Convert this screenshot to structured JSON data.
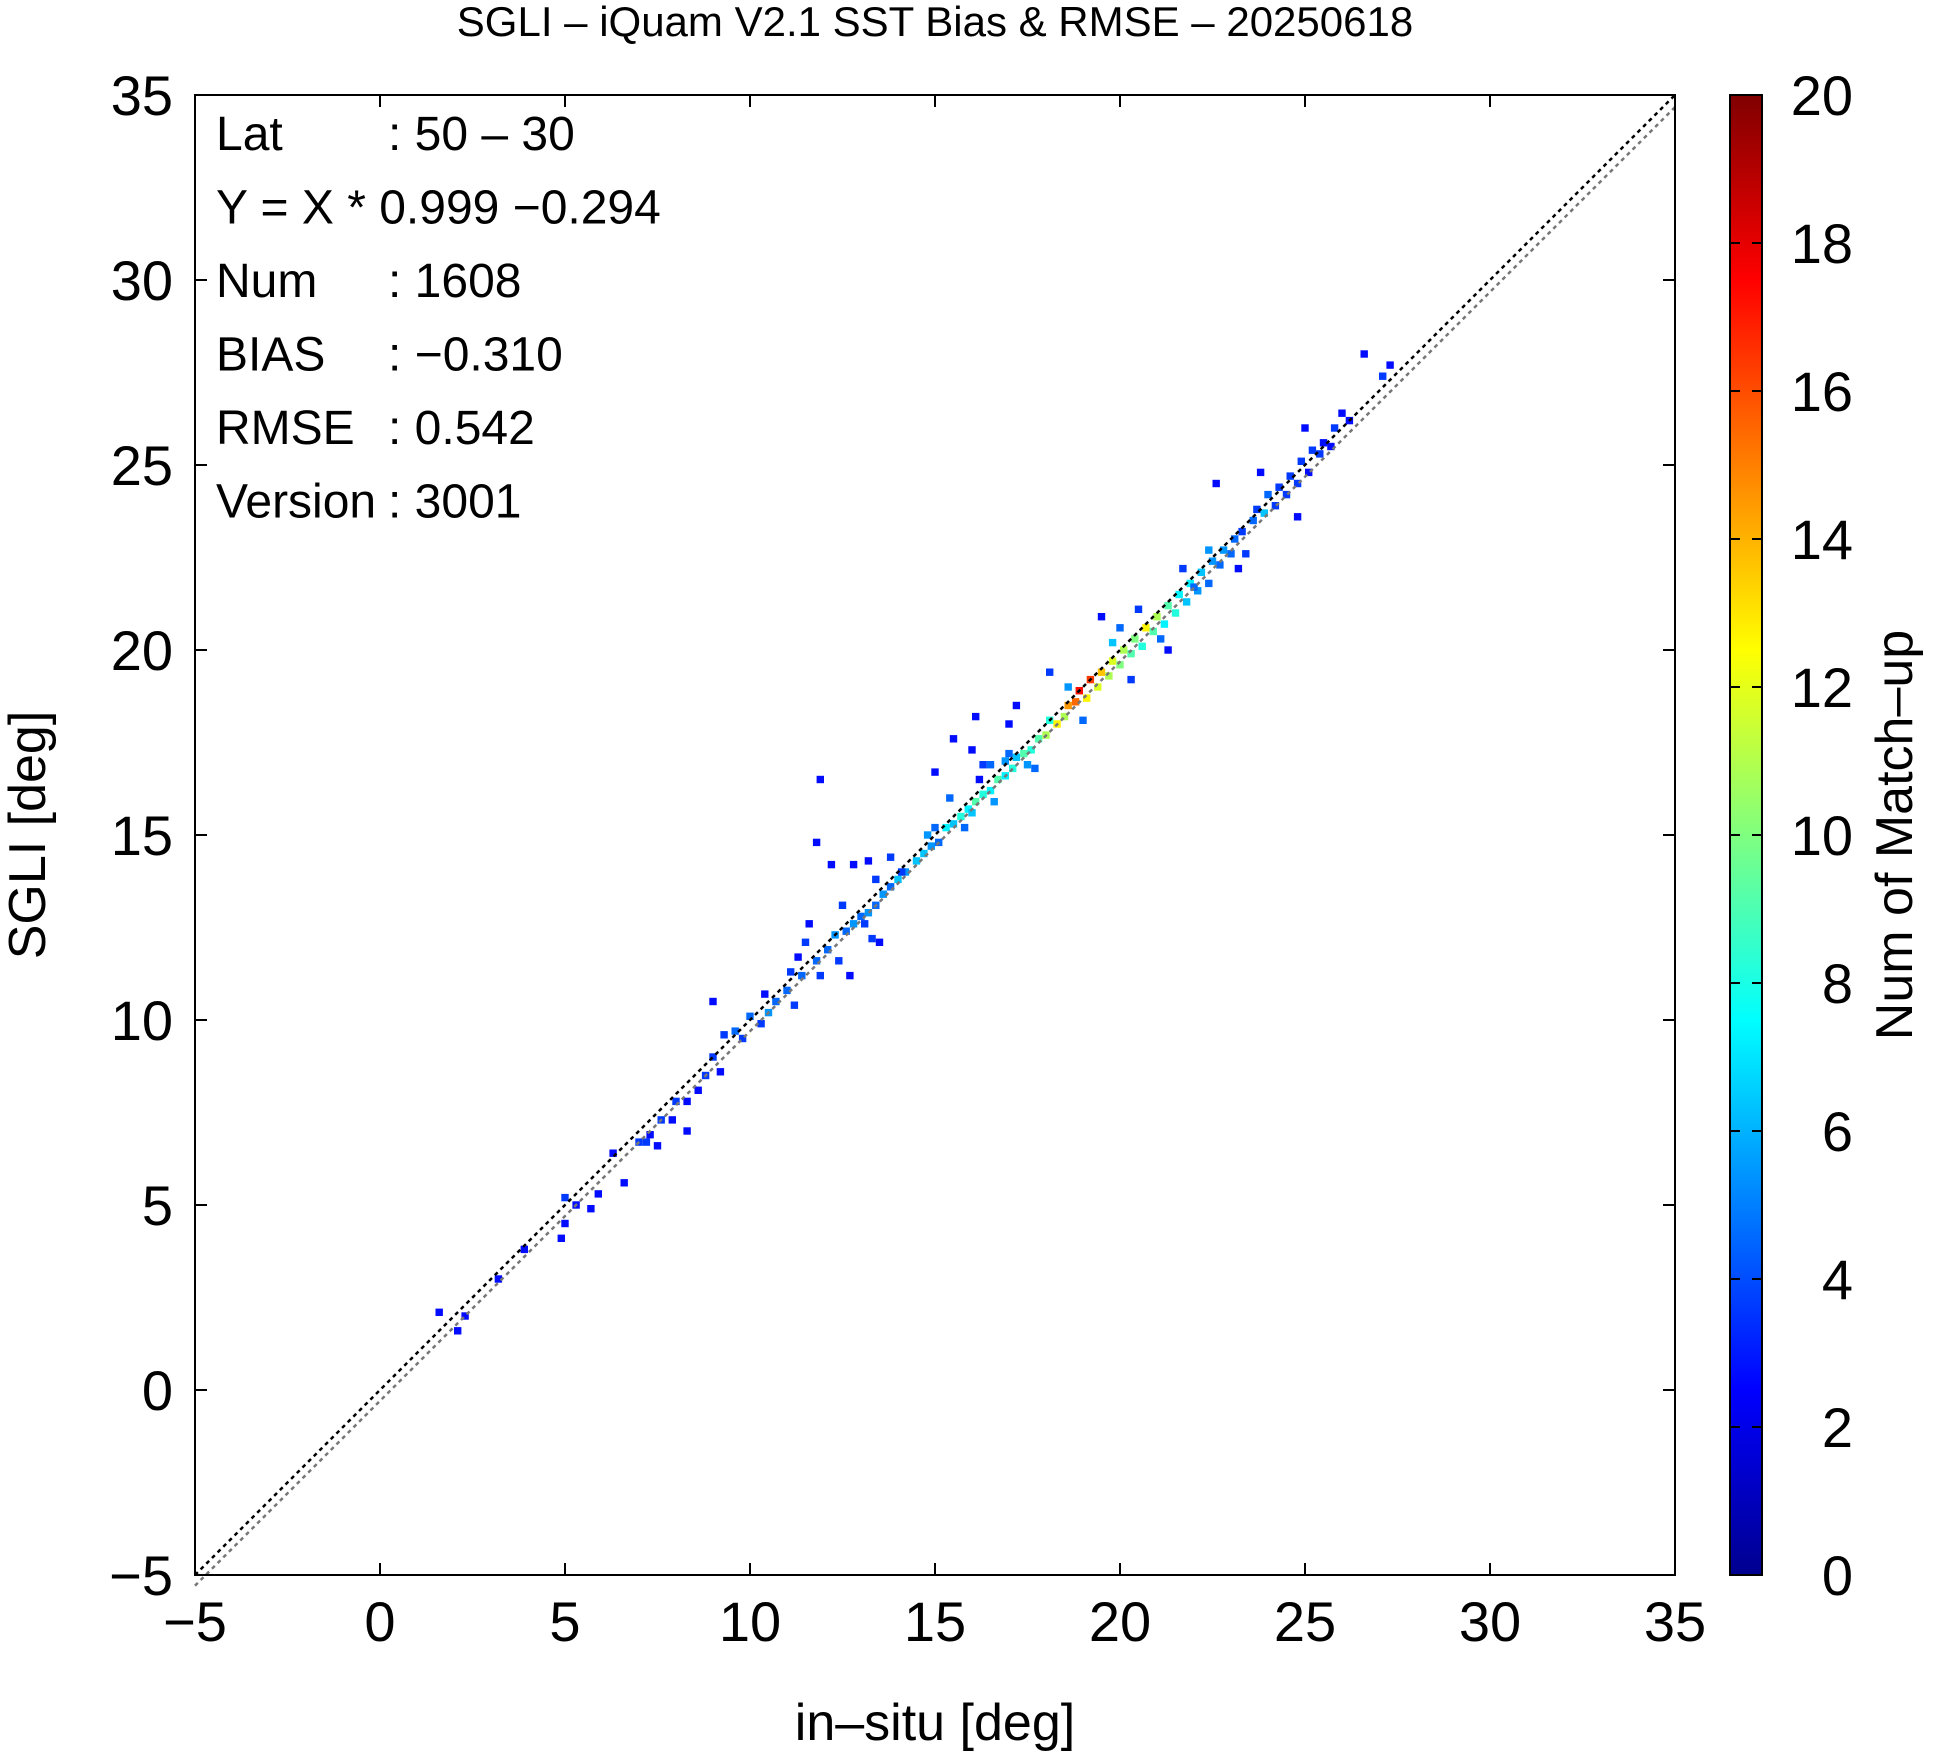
{
  "chart_data": {
    "type": "heatmap",
    "title": "SGLI – iQuam V2.1 SST Bias & RMSE  – 20250618",
    "xlabel": "in–situ [deg]",
    "ylabel": "SGLI [deg]",
    "xlim": [
      -5,
      35
    ],
    "ylim": [
      -5,
      35
    ],
    "xticks": [
      "−5",
      "0",
      "5",
      "10",
      "15",
      "20",
      "25",
      "30",
      "35"
    ],
    "yticks": [
      "−5",
      "0",
      "5",
      "10",
      "15",
      "20",
      "25",
      "30",
      "35"
    ],
    "grid": false,
    "colorbar": {
      "label": "Num of Match–up",
      "range": [
        0,
        20
      ],
      "ticks": [
        "0",
        "2",
        "4",
        "6",
        "8",
        "10",
        "12",
        "14",
        "16",
        "18",
        "20"
      ],
      "colormap": "jet"
    },
    "lines": [
      {
        "name": "1:1",
        "slope": 1,
        "intercept": 0,
        "style": "dotted",
        "color": "#000000"
      },
      {
        "name": "regression",
        "slope": 0.999,
        "intercept": -0.294,
        "style": "dotted",
        "color": "#777777"
      }
    ],
    "stats": [
      {
        "label": "Lat",
        "value": ": 50 – 30"
      },
      {
        "label": "Y = X * 0.999 −0.294",
        "value": ""
      },
      {
        "label": "Num",
        "value": ": 1608"
      },
      {
        "label": "BIAS",
        "value": ": −0.310"
      },
      {
        "label": "RMSE",
        "value": ": 0.542"
      },
      {
        "label": "Version",
        "value": ": 3001"
      }
    ],
    "scatter_cells": [
      [
        1.6,
        2.1,
        1
      ],
      [
        2.1,
        1.6,
        1
      ],
      [
        2.3,
        2.0,
        1
      ],
      [
        3.2,
        3.0,
        1
      ],
      [
        3.9,
        3.8,
        1
      ],
      [
        4.9,
        4.1,
        1
      ],
      [
        5.0,
        4.5,
        1
      ],
      [
        5.0,
        5.2,
        2
      ],
      [
        5.3,
        5.0,
        1
      ],
      [
        5.7,
        4.9,
        1
      ],
      [
        5.9,
        5.3,
        1
      ],
      [
        6.3,
        6.4,
        1
      ],
      [
        6.6,
        5.6,
        1
      ],
      [
        7.0,
        6.7,
        2
      ],
      [
        7.2,
        6.7,
        2
      ],
      [
        7.3,
        6.9,
        1
      ],
      [
        7.5,
        6.6,
        1
      ],
      [
        7.6,
        7.3,
        2
      ],
      [
        7.9,
        7.3,
        1
      ],
      [
        8.0,
        7.8,
        2
      ],
      [
        8.3,
        7.8,
        1
      ],
      [
        8.3,
        7.0,
        1
      ],
      [
        8.6,
        8.1,
        1
      ],
      [
        8.8,
        8.5,
        2
      ],
      [
        9.0,
        9.0,
        2
      ],
      [
        9.2,
        8.6,
        1
      ],
      [
        9.3,
        9.6,
        2
      ],
      [
        9.0,
        10.5,
        1
      ],
      [
        9.6,
        9.7,
        3
      ],
      [
        9.8,
        9.5,
        2
      ],
      [
        10.0,
        10.1,
        3
      ],
      [
        10.3,
        9.9,
        2
      ],
      [
        10.5,
        10.2,
        4
      ],
      [
        10.7,
        10.5,
        3
      ],
      [
        11.0,
        10.8,
        3
      ],
      [
        11.2,
        10.4,
        2
      ],
      [
        10.4,
        10.7,
        1
      ],
      [
        11.1,
        11.3,
        2
      ],
      [
        11.4,
        11.2,
        3
      ],
      [
        11.5,
        12.1,
        2
      ],
      [
        11.8,
        11.6,
        3
      ],
      [
        11.3,
        11.7,
        1
      ],
      [
        11.6,
        12.6,
        1
      ],
      [
        11.9,
        11.2,
        2
      ],
      [
        12.1,
        11.9,
        3
      ],
      [
        12.3,
        12.3,
        4
      ],
      [
        12.4,
        11.6,
        2
      ],
      [
        12.6,
        12.4,
        3
      ],
      [
        12.8,
        12.6,
        4
      ],
      [
        12.5,
        13.1,
        2
      ],
      [
        13.0,
        12.8,
        3
      ],
      [
        13.2,
        12.9,
        4
      ],
      [
        13.4,
        13.1,
        3
      ],
      [
        13.3,
        12.2,
        2
      ],
      [
        13.6,
        13.4,
        4
      ],
      [
        13.4,
        13.8,
        2
      ],
      [
        13.1,
        12.6,
        2
      ],
      [
        13.8,
        13.6,
        3
      ],
      [
        14.0,
        13.8,
        5
      ],
      [
        13.8,
        14.4,
        2
      ],
      [
        14.2,
        14.0,
        4
      ],
      [
        14.5,
        14.3,
        5
      ],
      [
        13.2,
        14.3,
        1
      ],
      [
        12.2,
        14.2,
        1
      ],
      [
        12.8,
        14.2,
        1
      ],
      [
        11.8,
        14.8,
        1
      ],
      [
        11.9,
        16.5,
        1
      ],
      [
        14.7,
        14.5,
        5
      ],
      [
        14.9,
        14.7,
        4
      ],
      [
        15.0,
        15.2,
        3
      ],
      [
        15.1,
        14.8,
        3
      ],
      [
        15.3,
        15.2,
        6
      ],
      [
        15.5,
        15.3,
        5
      ],
      [
        15.7,
        15.5,
        7
      ],
      [
        15.4,
        16.0,
        3
      ],
      [
        15.9,
        15.7,
        6
      ],
      [
        16.0,
        15.6,
        5
      ],
      [
        16.1,
        15.9,
        8
      ],
      [
        16.3,
        16.1,
        7
      ],
      [
        16.5,
        16.2,
        6
      ],
      [
        16.6,
        15.9,
        4
      ],
      [
        16.7,
        16.5,
        8
      ],
      [
        16.9,
        16.6,
        6
      ],
      [
        16.9,
        17.0,
        4
      ],
      [
        17.1,
        16.8,
        7
      ],
      [
        17.2,
        17.1,
        5
      ],
      [
        17.4,
        17.2,
        8
      ],
      [
        17.6,
        17.3,
        7
      ],
      [
        17.7,
        16.8,
        3
      ],
      [
        16.3,
        16.9,
        2
      ],
      [
        15.5,
        17.6,
        1
      ],
      [
        16.0,
        17.3,
        1
      ],
      [
        16.2,
        16.5,
        1
      ],
      [
        15.0,
        16.7,
        1
      ],
      [
        17.8,
        17.6,
        8
      ],
      [
        18.0,
        17.7,
        10
      ],
      [
        18.1,
        18.1,
        7
      ],
      [
        18.3,
        18.0,
        12
      ],
      [
        18.5,
        18.2,
        10
      ],
      [
        18.6,
        18.5,
        14
      ],
      [
        18.8,
        18.6,
        15
      ],
      [
        18.9,
        18.9,
        17
      ],
      [
        19.1,
        18.7,
        12
      ],
      [
        19.2,
        19.2,
        16
      ],
      [
        19.4,
        19.0,
        11
      ],
      [
        19.5,
        19.4,
        13
      ],
      [
        19.7,
        19.3,
        10
      ],
      [
        19.8,
        19.7,
        11
      ],
      [
        20.0,
        19.6,
        9
      ],
      [
        20.1,
        20.0,
        10
      ],
      [
        20.3,
        19.9,
        8
      ],
      [
        20.4,
        20.3,
        9
      ],
      [
        20.6,
        20.1,
        7
      ],
      [
        20.7,
        20.6,
        12
      ],
      [
        20.9,
        20.5,
        8
      ],
      [
        21.0,
        20.9,
        10
      ],
      [
        21.2,
        20.7,
        6
      ],
      [
        21.3,
        21.2,
        8
      ],
      [
        21.5,
        21.0,
        7
      ],
      [
        21.6,
        21.5,
        6
      ],
      [
        21.8,
        21.3,
        5
      ],
      [
        21.9,
        21.8,
        6
      ],
      [
        22.1,
        21.6,
        4
      ],
      [
        22.2,
        22.1,
        5
      ],
      [
        22.4,
        21.8,
        3
      ],
      [
        22.5,
        22.4,
        4
      ],
      [
        22.4,
        22.7,
        4
      ],
      [
        22.7,
        22.3,
        3
      ],
      [
        22.8,
        22.7,
        4
      ],
      [
        23.0,
        22.6,
        3
      ],
      [
        23.1,
        23.0,
        3
      ],
      [
        23.3,
        23.2,
        2
      ],
      [
        23.4,
        22.6,
        2
      ],
      [
        23.6,
        23.5,
        3
      ],
      [
        23.7,
        23.8,
        2
      ],
      [
        23.9,
        23.7,
        5
      ],
      [
        24.0,
        24.2,
        3
      ],
      [
        24.2,
        23.9,
        2
      ],
      [
        24.3,
        24.4,
        2
      ],
      [
        24.5,
        24.2,
        2
      ],
      [
        24.6,
        24.7,
        2
      ],
      [
        24.8,
        24.5,
        2
      ],
      [
        24.9,
        25.1,
        2
      ],
      [
        25.1,
        24.8,
        1
      ],
      [
        25.2,
        25.4,
        2
      ],
      [
        25.4,
        25.3,
        2
      ],
      [
        25.5,
        25.6,
        1
      ],
      [
        25.7,
        25.5,
        1
      ],
      [
        25.8,
        26.0,
        2
      ],
      [
        26.0,
        26.4,
        1
      ],
      [
        26.2,
        26.2,
        1
      ],
      [
        26.6,
        28.0,
        1
      ],
      [
        27.1,
        27.4,
        2
      ],
      [
        27.3,
        27.7,
        1
      ],
      [
        24.8,
        23.6,
        1
      ],
      [
        22.6,
        24.5,
        1
      ],
      [
        18.1,
        19.4,
        2
      ],
      [
        19.5,
        20.9,
        1
      ],
      [
        20.3,
        19.2,
        2
      ],
      [
        21.3,
        20.0,
        1
      ],
      [
        17.0,
        18.0,
        1
      ],
      [
        16.1,
        18.2,
        1
      ],
      [
        17.2,
        18.5,
        1
      ],
      [
        14.1,
        14.0,
        2
      ],
      [
        12.7,
        11.2,
        1
      ],
      [
        13.5,
        12.1,
        1
      ],
      [
        23.8,
        24.8,
        1
      ],
      [
        25.0,
        26.0,
        1
      ],
      [
        23.2,
        22.2,
        1
      ],
      [
        19.0,
        18.1,
        3
      ],
      [
        18.6,
        19.0,
        4
      ],
      [
        20.5,
        21.1,
        2
      ],
      [
        21.1,
        20.3,
        3
      ],
      [
        22.0,
        21.7,
        3
      ],
      [
        17.5,
        16.9,
        4
      ],
      [
        16.5,
        16.9,
        3
      ],
      [
        15.8,
        15.2,
        3
      ],
      [
        14.8,
        15.0,
        4
      ],
      [
        17.0,
        17.2,
        3
      ],
      [
        19.8,
        20.2,
        5
      ],
      [
        21.7,
        22.2,
        2
      ],
      [
        20.0,
        20.6,
        3
      ]
    ]
  }
}
